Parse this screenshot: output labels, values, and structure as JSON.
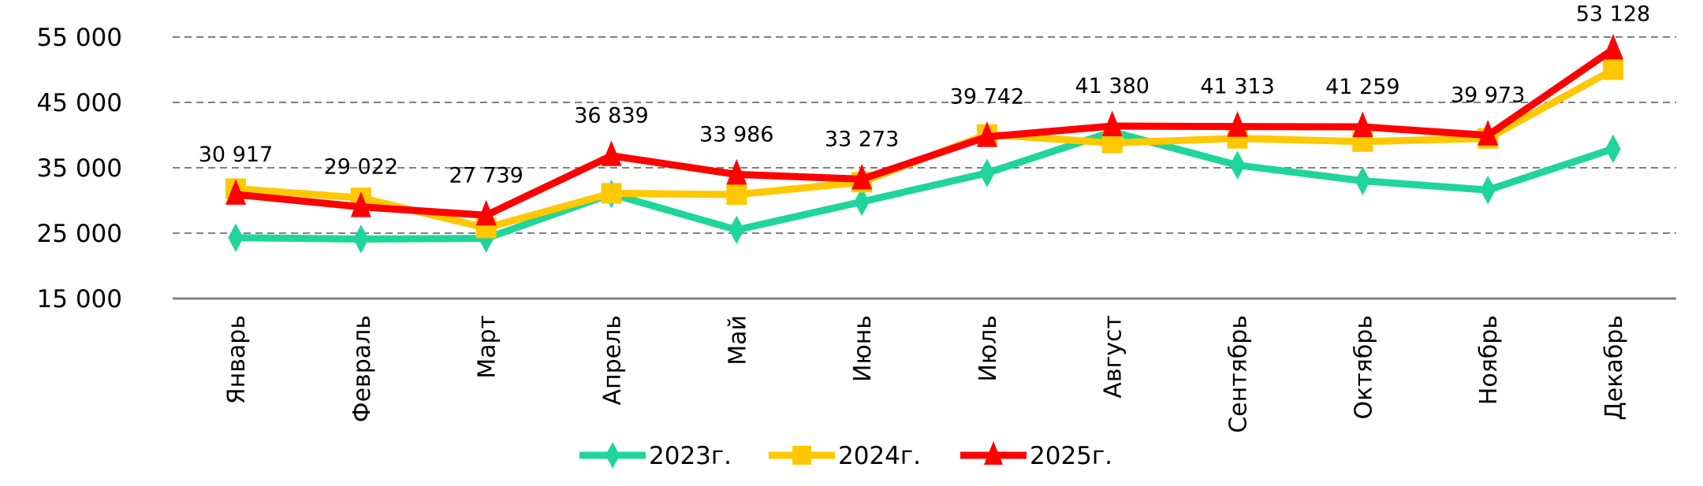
{
  "chart_data": {
    "type": "line",
    "title": "",
    "xlabel": "",
    "ylabel": "",
    "ylim": [
      15000,
      55000
    ],
    "yticks": [
      15000,
      25000,
      35000,
      45000,
      55000
    ],
    "ytick_labels": [
      "15 000",
      "25 000",
      "35 000",
      "45 000",
      "55 000"
    ],
    "grid": true,
    "legend_position": "bottom",
    "categories": [
      "Январь",
      "Февраль",
      "Март",
      "Апрель",
      "Май",
      "Июнь",
      "Июль",
      "Август",
      "Сентябрь",
      "Октябрь",
      "Ноябрь",
      "Декабрь"
    ],
    "series": [
      {
        "name": "2023г.",
        "color": "#1fd59a",
        "marker": "diamond",
        "values": [
          24300,
          24100,
          24200,
          31000,
          25500,
          29800,
          34200,
          40500,
          35400,
          33000,
          31600,
          37900
        ]
      },
      {
        "name": "2024г.",
        "color": "#ffc800",
        "marker": "square",
        "values": [
          31800,
          30400,
          25800,
          31100,
          30900,
          32800,
          40100,
          38800,
          39500,
          39000,
          39500,
          50000
        ]
      },
      {
        "name": "2025г.",
        "color": "#ff0000",
        "marker": "triangle",
        "values": [
          30917,
          29022,
          27739,
          36839,
          33986,
          33273,
          39742,
          41380,
          41313,
          41259,
          39973,
          53128
        ],
        "data_labels": [
          "30 917",
          "29 022",
          "27 739",
          "36 839",
          "33 986",
          "33 273",
          "39 742",
          "41 380",
          "41 313",
          "41 259",
          "39 973",
          "53 128"
        ]
      }
    ]
  }
}
